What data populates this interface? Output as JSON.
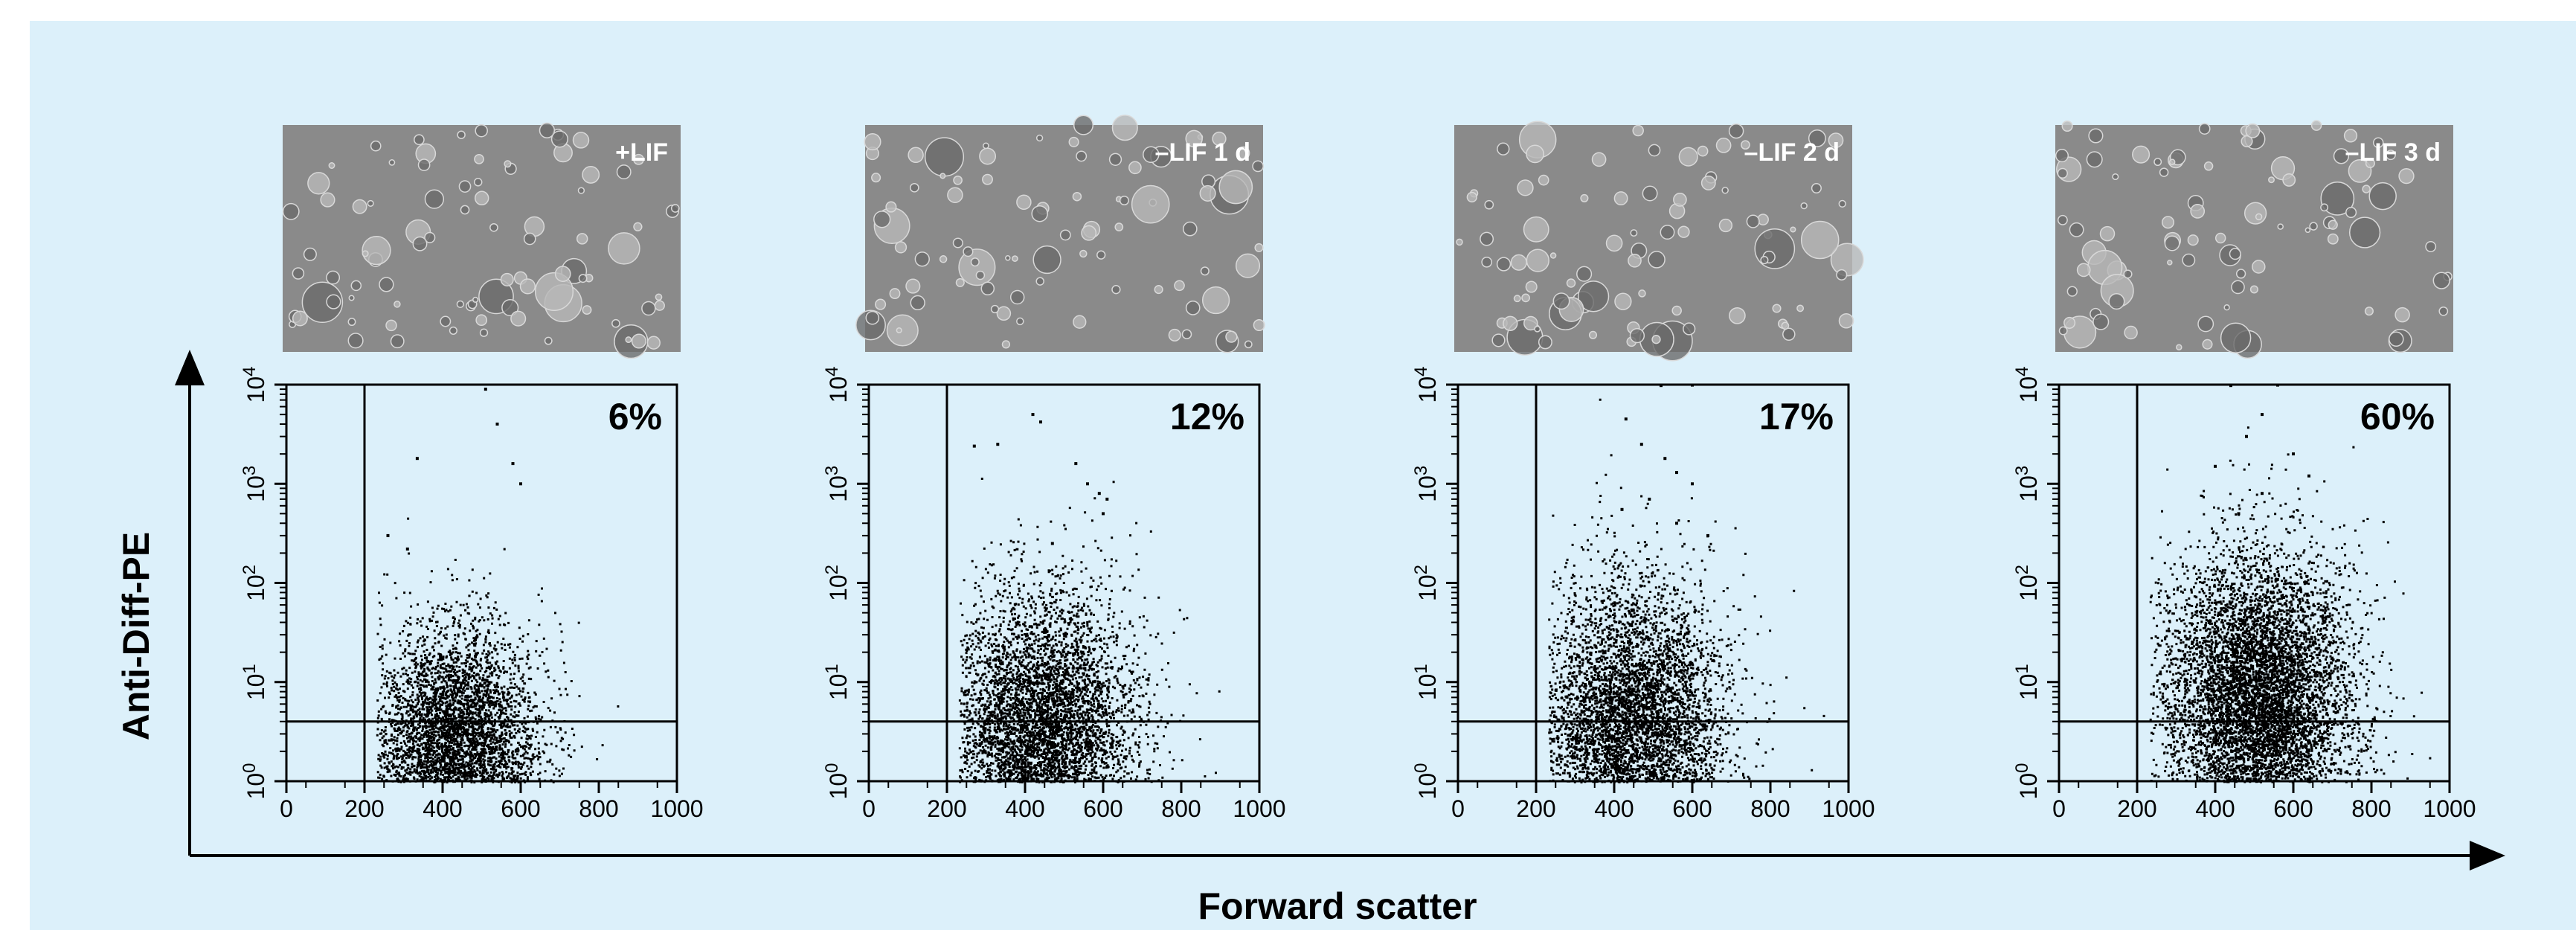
{
  "chart_data": {
    "type": "scatter",
    "xlabel": "Forward scatter",
    "ylabel": "Anti-Diff-PE",
    "x_ticks": [
      "0",
      "200",
      "400",
      "600",
      "800",
      "1000"
    ],
    "y_ticks": [
      "10^0",
      "10^1",
      "10^2",
      "10^3",
      "10^4"
    ],
    "xlim": [
      0,
      1000
    ],
    "ylim": [
      1,
      10000
    ],
    "y_scale": "log",
    "gate_x": 200,
    "gate_y": 4,
    "panels": [
      {
        "condition": "+LIF",
        "percent": "6%",
        "center_x": 430,
        "center_y": 2.2,
        "spread_x": 110,
        "spread_y": 0.6,
        "count": 5200,
        "outliers": [
          [
            510,
            9000
          ],
          [
            540,
            4000
          ],
          [
            335,
            1800
          ],
          [
            580,
            1600
          ],
          [
            600,
            1000
          ],
          [
            260,
            300
          ],
          [
            310,
            220
          ]
        ]
      },
      {
        "condition": "–LIF 1 d",
        "percent": "12%",
        "center_x": 440,
        "center_y": 3.0,
        "spread_x": 120,
        "spread_y": 0.7,
        "count": 6000,
        "outliers": [
          [
            420,
            5000
          ],
          [
            440,
            4200
          ],
          [
            270,
            2400
          ],
          [
            330,
            2500
          ],
          [
            530,
            1600
          ],
          [
            560,
            1000
          ],
          [
            590,
            800
          ],
          [
            610,
            700
          ],
          [
            600,
            500
          ],
          [
            470,
            250
          ]
        ]
      },
      {
        "condition": "–LIF 2 d",
        "percent": "17%",
        "center_x": 440,
        "center_y": 3.2,
        "spread_x": 120,
        "spread_y": 0.75,
        "count": 6000,
        "outliers": [
          [
            520,
            9800
          ],
          [
            600,
            9900
          ],
          [
            430,
            4500
          ],
          [
            470,
            2500
          ],
          [
            530,
            1800
          ],
          [
            560,
            1300
          ],
          [
            600,
            1000
          ],
          [
            490,
            700
          ],
          [
            420,
            550
          ],
          [
            560,
            400
          ],
          [
            640,
            300
          ]
        ]
      },
      {
        "condition": "–LIF 3 d",
        "percent": "60%",
        "center_x": 510,
        "center_y": 6.5,
        "spread_x": 120,
        "spread_y": 0.75,
        "count": 7500,
        "outliers": [
          [
            440,
            9800
          ],
          [
            560,
            9900
          ],
          [
            520,
            5000
          ],
          [
            480,
            3000
          ],
          [
            600,
            2000
          ],
          [
            400,
            1500
          ],
          [
            640,
            1200
          ],
          [
            520,
            800
          ],
          [
            460,
            500
          ]
        ]
      }
    ]
  }
}
